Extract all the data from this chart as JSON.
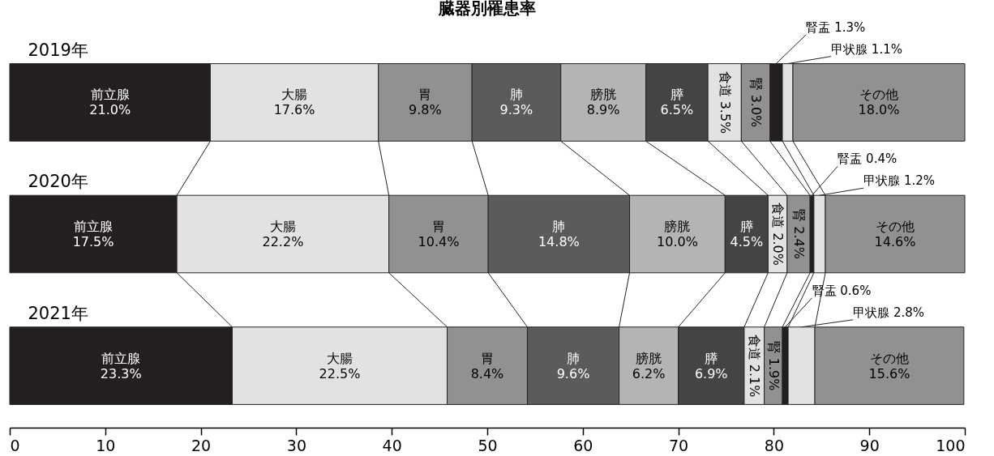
{
  "chart_data": {
    "type": "bar",
    "orientation": "horizontal",
    "stacked": true,
    "title": "臓器別罹患率",
    "categories": [
      "2019年",
      "2020年",
      "2021年"
    ],
    "series": [
      {
        "name": "前立腺",
        "color": "#231f20",
        "values": [
          21.0,
          17.5,
          23.3
        ],
        "value_labels": [
          "21.0%",
          "17.5%",
          "23.3%"
        ]
      },
      {
        "name": "大腸",
        "color": "#e2e2e2",
        "values": [
          17.6,
          22.2,
          22.5
        ],
        "value_labels": [
          "17.6%",
          "22.2%",
          "22.5%"
        ]
      },
      {
        "name": "胃",
        "color": "#919191",
        "values": [
          9.8,
          10.4,
          8.4
        ],
        "value_labels": [
          "9.8%",
          "10.4%",
          "8.4%"
        ]
      },
      {
        "name": "肺",
        "color": "#5b5b5b",
        "values": [
          9.3,
          14.8,
          9.6
        ],
        "value_labels": [
          "9.3%",
          "14.8%",
          "9.6%"
        ]
      },
      {
        "name": "膀胱",
        "color": "#b4b4b4",
        "values": [
          8.9,
          10.0,
          6.2
        ],
        "value_labels": [
          "8.9%",
          "10.0%",
          "6.2%"
        ]
      },
      {
        "name": "膵",
        "color": "#444444",
        "values": [
          6.5,
          4.5,
          6.9
        ],
        "value_labels": [
          "6.5%",
          "4.5%",
          "6.9%"
        ]
      },
      {
        "name": "食道",
        "color": "#e2e2e2",
        "values": [
          3.5,
          2.0,
          2.1
        ],
        "value_labels": [
          "3.5%",
          "2.0%",
          "2.1%"
        ]
      },
      {
        "name": "腎",
        "color": "#919191",
        "values": [
          3.0,
          2.4,
          1.9
        ],
        "value_labels": [
          "3.0%",
          "2.4%",
          "1.9%"
        ]
      },
      {
        "name": "腎盂",
        "color": "#231f20",
        "values": [
          1.3,
          0.4,
          0.6
        ],
        "value_labels": [
          "1.3%",
          "0.4%",
          "0.6%"
        ]
      },
      {
        "name": "甲状腺",
        "color": "#e2e2e2",
        "values": [
          1.1,
          1.2,
          2.8
        ],
        "value_labels": [
          "1.1%",
          "1.2%",
          "2.8%"
        ]
      },
      {
        "name": "その他",
        "color": "#919191",
        "values": [
          18.0,
          14.6,
          15.6
        ],
        "value_labels": [
          "18.0%",
          "14.6%",
          "15.6%"
        ]
      }
    ],
    "xlim": [
      0,
      100
    ],
    "xticks": [
      0,
      10,
      20,
      30,
      40,
      50,
      60,
      70,
      80,
      90,
      100
    ],
    "grid": false,
    "legend": false
  }
}
